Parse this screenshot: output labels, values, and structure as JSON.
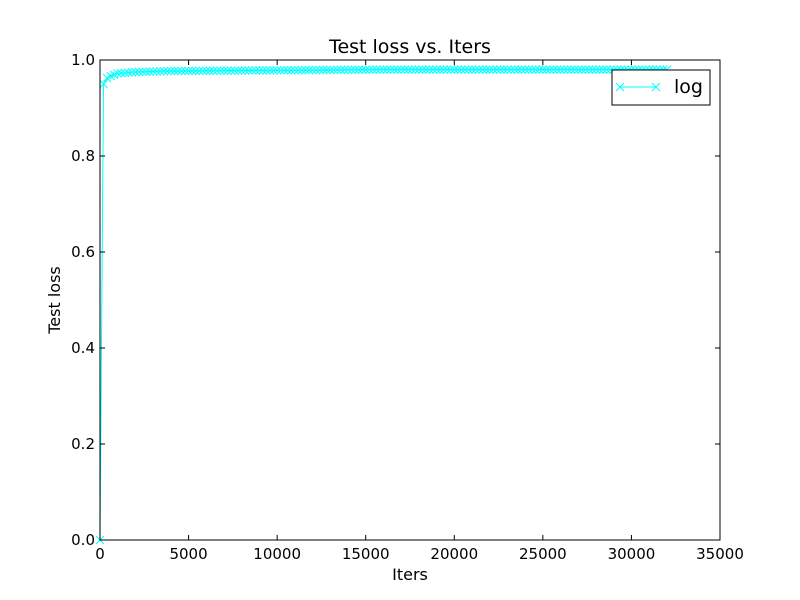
{
  "chart_data": {
    "type": "line",
    "title": "Test loss  vs. Iters",
    "xlabel": "Iters",
    "ylabel": "Test loss",
    "xlim": [
      0,
      35000
    ],
    "ylim": [
      0.0,
      1.0
    ],
    "xticks": [
      "0",
      "5000",
      "10000",
      "15000",
      "20000",
      "25000",
      "30000",
      "35000"
    ],
    "yticks": [
      "0.0",
      "0.2",
      "0.4",
      "0.6",
      "0.8",
      "1.0"
    ],
    "grid": false,
    "legend_position": "top-right",
    "series": [
      {
        "name": "log",
        "color": "#00ffff",
        "marker": "x",
        "points": [
          [
            0,
            0.0
          ],
          [
            100,
            0.92
          ],
          [
            200,
            0.95
          ],
          [
            300,
            0.96
          ],
          [
            500,
            0.965
          ],
          [
            1000,
            0.972
          ],
          [
            2000,
            0.975
          ],
          [
            4000,
            0.977
          ],
          [
            8000,
            0.978
          ],
          [
            16000,
            0.98
          ],
          [
            24000,
            0.98
          ],
          [
            32000,
            0.98
          ]
        ],
        "step": 200
      }
    ]
  }
}
